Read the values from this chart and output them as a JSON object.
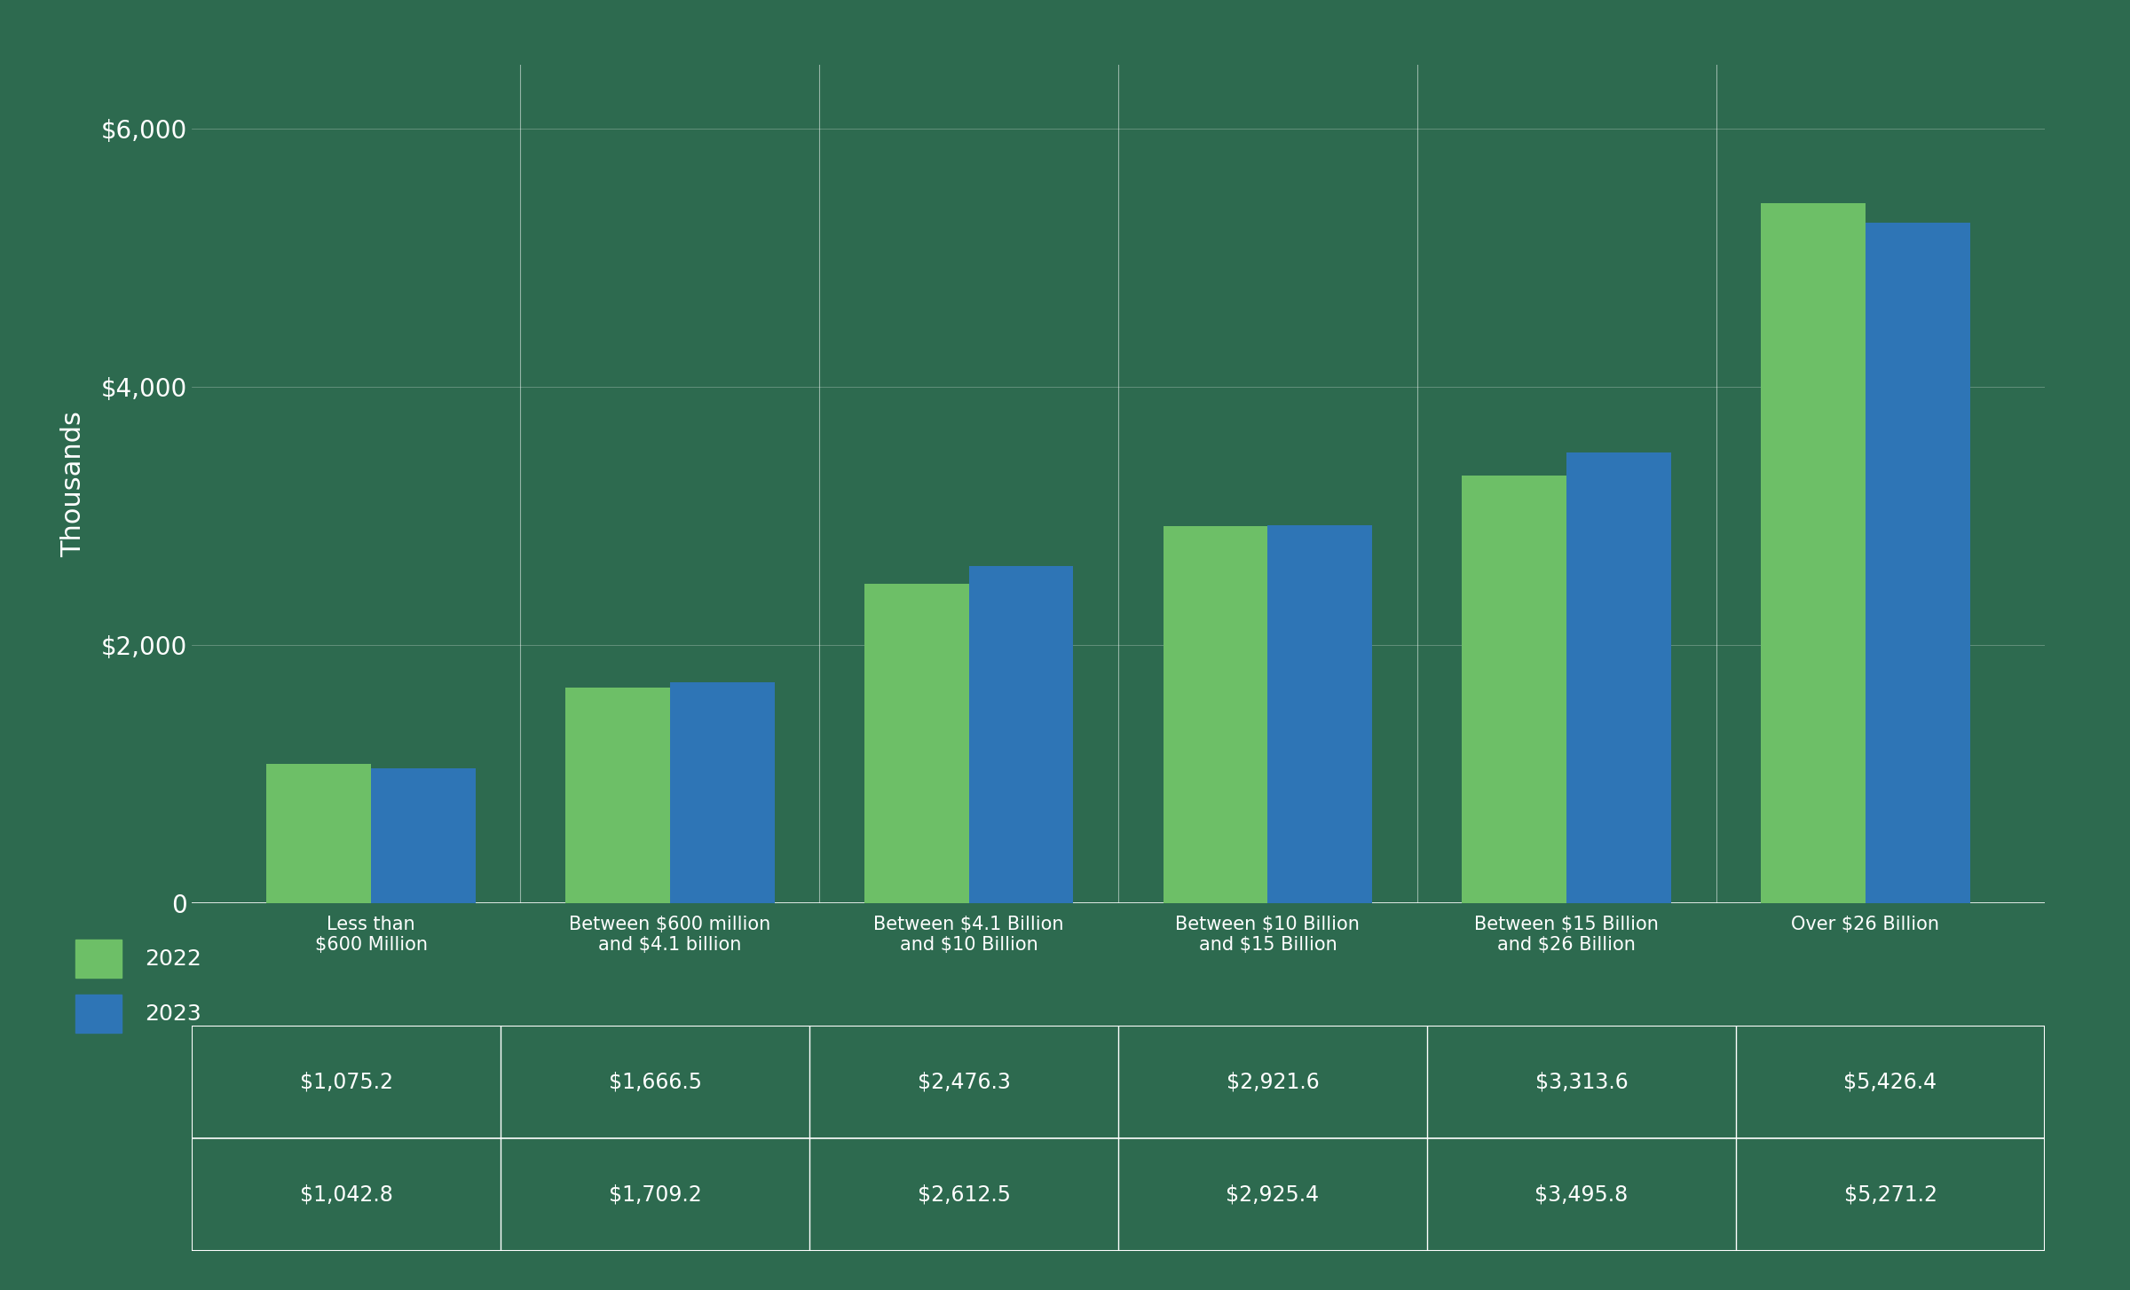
{
  "categories": [
    "Less than\n$600 Million",
    "Between $600 million\nand $4.1 billion",
    "Between $4.1 Billion\nand $10 Billion",
    "Between $10 Billion\nand $15 Billion",
    "Between $15 Billion\nand $26 Billion",
    "Over $26 Billion"
  ],
  "values_2022": [
    1075.2,
    1666.5,
    2476.3,
    2921.6,
    3313.6,
    5426.4
  ],
  "values_2023": [
    1042.8,
    1709.2,
    2612.5,
    2925.4,
    3495.8,
    5271.2
  ],
  "color_2022": "#6dbf67",
  "color_2023": "#2e75b6",
  "ylabel": "Thousands",
  "ylim": [
    0,
    6500
  ],
  "yticks": [
    0,
    2000,
    4000,
    6000
  ],
  "ytick_labels": [
    "0",
    "$2,000",
    "$4,000",
    "$6,000"
  ],
  "legend_labels": [
    "2022",
    "2023"
  ],
  "background_color": "#2d6a4f",
  "table_values_2022": [
    "$1,075.2",
    "$1,666.5",
    "$2,476.3",
    "$2,921.6",
    "$3,313.6",
    "$5,426.4"
  ],
  "table_values_2023": [
    "$1,042.8",
    "$1,709.2",
    "$2,612.5",
    "$2,925.4",
    "$3,495.8",
    "$5,271.2"
  ],
  "bar_width": 0.35,
  "figsize": [
    24.0,
    14.54
  ],
  "dpi": 100
}
